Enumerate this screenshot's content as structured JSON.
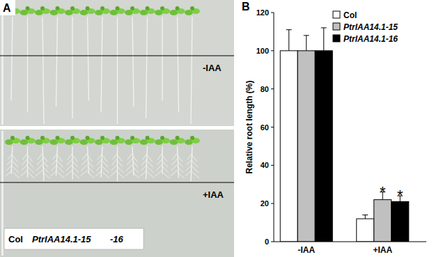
{
  "chart_data": {
    "type": "bar",
    "title": "B",
    "categories": [
      "-IAA",
      "+IAA"
    ],
    "series": [
      {
        "name": "Col",
        "color": "#ffffff",
        "values": [
          100,
          12
        ],
        "errors": [
          11,
          2
        ],
        "significance": [
          null,
          null
        ]
      },
      {
        "name": "PtrIAA14.1-15",
        "color": "#c0c0c0",
        "values": [
          100,
          22
        ],
        "errors": [
          8,
          4
        ],
        "significance": [
          null,
          "*"
        ]
      },
      {
        "name": "PtrIAA14.1-16",
        "color": "#000000",
        "values": [
          100,
          21
        ],
        "errors": [
          12,
          3
        ],
        "significance": [
          null,
          "*"
        ]
      }
    ],
    "y_label": "Relative root length (%)",
    "ylim": [
      0,
      120
    ],
    "yticks": [
      0,
      20,
      40,
      60,
      80,
      100,
      120
    ],
    "grid": false,
    "legend": "top-right"
  },
  "photo_panel": {
    "label": "A",
    "treatments": [
      "-IAA",
      "+IAA"
    ],
    "genotypes": [
      "Col",
      "PtrIAA14.1-15",
      "-16"
    ]
  }
}
